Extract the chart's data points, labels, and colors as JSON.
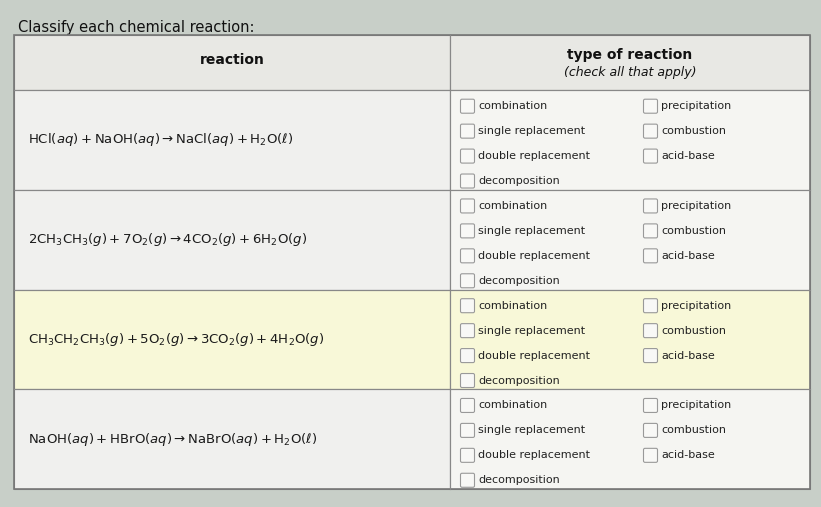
{
  "title": "Classify each chemical reaction:",
  "bg_color": "#c8cfc8",
  "table_white": "#f0f0ee",
  "header_bg": "#e0e0dc",
  "row_colors_left": [
    "#f0f0ee",
    "#f0f0ee",
    "#f0f0ee",
    "#f0f0ee"
  ],
  "row_colors_right": [
    "#f0f0ee",
    "#f0f0ee",
    "#f0f0ee",
    "#f0f0ee"
  ],
  "highlight_row": 2,
  "highlight_color": "#f8f8d8",
  "border_color": "#888888",
  "text_color": "#222222",
  "cb_left": [
    "combination",
    "single replacement",
    "double replacement",
    "decomposition"
  ],
  "cb_right": [
    "precipitation",
    "combustion",
    "acid-base"
  ],
  "title_fontsize": 10.5,
  "header_fontsize": 10,
  "reaction_fontsize": 9.5,
  "cb_fontsize": 8.0
}
